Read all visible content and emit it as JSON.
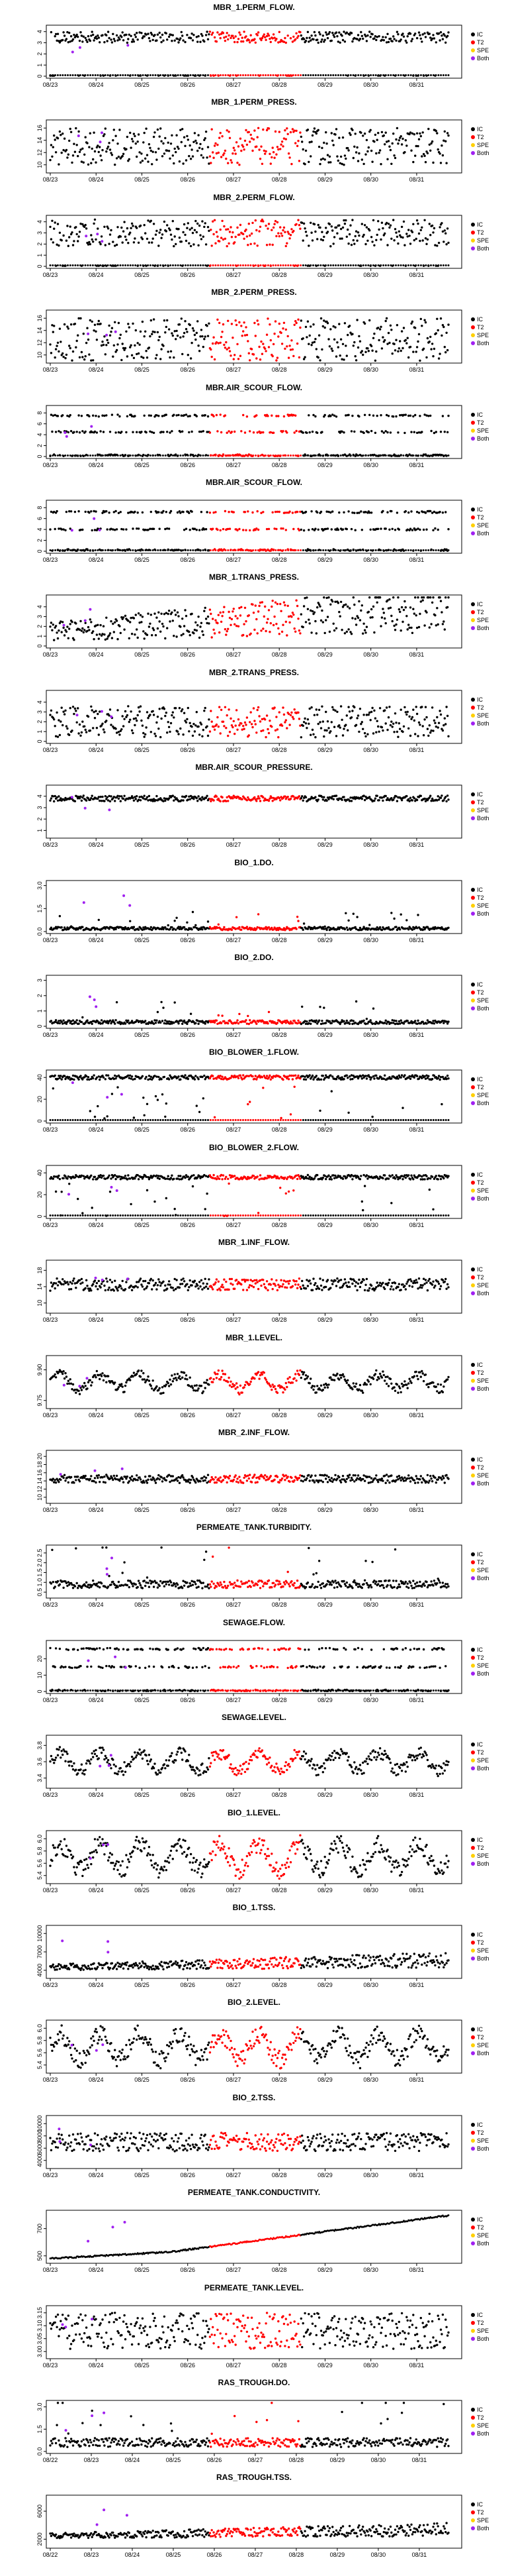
{
  "colors": {
    "IC": "#000000",
    "T2": "#ff0000",
    "SPE": "#ffd000",
    "Both": "#a020f0"
  },
  "legend": {
    "items": [
      "IC",
      "T2",
      "SPE",
      "Both"
    ]
  },
  "chart_data": [
    {
      "type": "scatter",
      "title": "MBR_1.PERM_FLOW.",
      "xticks": [
        "08/23",
        "08/24",
        "08/25",
        "08/26",
        "08/27",
        "08/28",
        "08/29",
        "08/30",
        "08/31"
      ],
      "yticks": [
        "0",
        "1",
        "2",
        "3",
        "4"
      ],
      "ylim": [
        0,
        4.4
      ],
      "pattern": "bimodal",
      "base": 3.5,
      "amp": 0.5,
      "low": 0.05
    },
    {
      "type": "scatter",
      "title": "MBR_1.PERM_PRESS.",
      "xticks": [
        "08/23",
        "08/24",
        "08/25",
        "08/26",
        "08/27",
        "08/28",
        "08/29",
        "08/30",
        "08/31"
      ],
      "yticks": [
        "10",
        "12",
        "14",
        "16"
      ],
      "ylim": [
        9,
        17
      ],
      "pattern": "band",
      "base": 13,
      "amp": 3
    },
    {
      "type": "scatter",
      "title": "MBR_2.PERM_FLOW.",
      "xticks": [
        "08/23",
        "08/24",
        "08/25",
        "08/26",
        "08/27",
        "08/28",
        "08/29",
        "08/30",
        "08/31"
      ],
      "yticks": [
        "0",
        "1",
        "2",
        "3",
        "4"
      ],
      "ylim": [
        0,
        4.4
      ],
      "pattern": "bimodal",
      "base": 3,
      "amp": 1.2,
      "low": 0.05
    },
    {
      "type": "scatter",
      "title": "MBR_2.PERM_PRESS.",
      "xticks": [
        "08/23",
        "08/24",
        "08/25",
        "08/26",
        "08/27",
        "08/28",
        "08/29",
        "08/30",
        "08/31"
      ],
      "yticks": [
        "10",
        "12",
        "14",
        "16"
      ],
      "ylim": [
        9,
        17
      ],
      "pattern": "band",
      "base": 12.5,
      "amp": 3.5
    },
    {
      "type": "scatter",
      "title": "MBR.AIR_SCOUR_FLOW.",
      "xticks": [
        "08/23",
        "08/24",
        "08/25",
        "08/26",
        "08/27",
        "08/28",
        "08/29",
        "08/30",
        "08/31"
      ],
      "yticks": [
        "0",
        "2",
        "4",
        "6",
        "8"
      ],
      "ylim": [
        0,
        9
      ],
      "pattern": "levels",
      "levels": [
        7.5,
        4.5,
        0.2
      ]
    },
    {
      "type": "scatter",
      "title": "MBR.AIR_SCOUR_FLOW.",
      "xticks": [
        "08/23",
        "08/24",
        "08/25",
        "08/26",
        "08/27",
        "08/28",
        "08/29",
        "08/30",
        "08/31"
      ],
      "yticks": [
        "0",
        "2",
        "4",
        "6",
        "8"
      ],
      "ylim": [
        0,
        9
      ],
      "pattern": "levels",
      "levels": [
        7.2,
        4.0,
        0.2
      ]
    },
    {
      "type": "scatter",
      "title": "MBR_1.TRANS_PRESS.",
      "xticks": [
        "08/23",
        "08/24",
        "08/25",
        "08/26",
        "08/27",
        "08/28",
        "08/29",
        "08/30",
        "08/31"
      ],
      "yticks": [
        "0",
        "1",
        "2",
        "3",
        "4"
      ],
      "ylim": [
        0,
        5
      ],
      "pattern": "rising",
      "base": 1.5,
      "amp": 1.6
    },
    {
      "type": "scatter",
      "title": "MBR_2.TRANS_PRESS.",
      "xticks": [
        "08/23",
        "08/24",
        "08/25",
        "08/26",
        "08/27",
        "08/28",
        "08/29",
        "08/30",
        "08/31"
      ],
      "yticks": [
        "0",
        "1",
        "2",
        "3",
        "4"
      ],
      "ylim": [
        0,
        5
      ],
      "pattern": "band",
      "base": 2,
      "amp": 1.6
    },
    {
      "type": "scatter",
      "title": "MBR.AIR_SCOUR_PRESSURE.",
      "xticks": [
        "08/23",
        "08/24",
        "08/25",
        "08/26",
        "08/27",
        "08/28",
        "08/29",
        "08/30",
        "08/31"
      ],
      "yticks": [
        "1",
        "2",
        "3",
        "4"
      ],
      "ylim": [
        0.5,
        4.8
      ],
      "pattern": "flat",
      "base": 3.8,
      "amp": 0.25
    },
    {
      "type": "scatter",
      "title": "BIO_1.DO.",
      "xticks": [
        "08/23",
        "08/24",
        "08/25",
        "08/26",
        "08/27",
        "08/28",
        "08/29",
        "08/30",
        "08/31"
      ],
      "yticks": [
        "0.0",
        "1.5",
        "3.0"
      ],
      "ylim": [
        0,
        3.2
      ],
      "pattern": "spiky",
      "base": 0.1,
      "amp": 0.4
    },
    {
      "type": "scatter",
      "title": "BIO_2.DO.",
      "xticks": [
        "08/23",
        "08/24",
        "08/25",
        "08/26",
        "08/27",
        "08/28",
        "08/29",
        "08/30",
        "08/31"
      ],
      "yticks": [
        "0",
        "1",
        "2",
        "3"
      ],
      "ylim": [
        0,
        3.2
      ],
      "pattern": "spiky",
      "base": 0.15,
      "amp": 0.5
    },
    {
      "type": "scatter",
      "title": "BIO_BLOWER_1.FLOW.",
      "xticks": [
        "08/23",
        "08/24",
        "08/25",
        "08/26",
        "08/27",
        "08/28",
        "08/29",
        "08/30",
        "08/31"
      ],
      "yticks": [
        "0",
        "20",
        "40"
      ],
      "ylim": [
        0,
        45
      ],
      "pattern": "high",
      "base": 40,
      "amp": 2
    },
    {
      "type": "scatter",
      "title": "BIO_BLOWER_2.FLOW.",
      "xticks": [
        "08/23",
        "08/24",
        "08/25",
        "08/26",
        "08/27",
        "08/28",
        "08/29",
        "08/30",
        "08/31"
      ],
      "yticks": [
        "0",
        "20",
        "40"
      ],
      "ylim": [
        0,
        45
      ],
      "pattern": "high",
      "base": 36,
      "amp": 2
    },
    {
      "type": "scatter",
      "title": "MBR_1.INF_FLOW.",
      "xticks": [
        "08/23",
        "08/24",
        "08/25",
        "08/26",
        "08/27",
        "08/28",
        "08/29",
        "08/30",
        "08/31"
      ],
      "yticks": [
        "10",
        "14",
        "18"
      ],
      "ylim": [
        8,
        20
      ],
      "pattern": "band",
      "base": 14.5,
      "amp": 1.5
    },
    {
      "type": "scatter",
      "title": "MBR_1.LEVEL.",
      "xticks": [
        "08/23",
        "08/24",
        "08/25",
        "08/26",
        "08/27",
        "08/28",
        "08/29",
        "08/30",
        "08/31"
      ],
      "yticks": [
        "9.75",
        "9.90"
      ],
      "ylim": [
        9.72,
        9.96
      ],
      "pattern": "wave",
      "base": 9.84,
      "amp": 0.05
    },
    {
      "type": "scatter",
      "title": "MBR_2.INF_FLOW.",
      "xticks": [
        "08/23",
        "08/24",
        "08/25",
        "08/26",
        "08/27",
        "08/28",
        "08/29",
        "08/30",
        "08/31"
      ],
      "yticks": [
        "10",
        "12",
        "14",
        "16",
        "18",
        "20"
      ],
      "ylim": [
        9,
        21
      ],
      "pattern": "band",
      "base": 14.5,
      "amp": 1
    },
    {
      "type": "scatter",
      "title": "PERMEATE_TANK.TURBIDITY.",
      "xticks": [
        "08/23",
        "08/24",
        "08/25",
        "08/26",
        "08/27",
        "08/28",
        "08/29",
        "08/30",
        "08/31"
      ],
      "yticks": [
        "0.5",
        "1.0",
        "1.5",
        "2.0",
        "2.5"
      ],
      "ylim": [
        0.3,
        2.8
      ],
      "pattern": "spiky",
      "base": 0.7,
      "amp": 0.8
    },
    {
      "type": "scatter",
      "title": "SEWAGE.FLOW.",
      "xticks": [
        "08/23",
        "08/24",
        "08/25",
        "08/26",
        "08/27",
        "08/28",
        "08/29",
        "08/30",
        "08/31"
      ],
      "yticks": [
        "0",
        "10",
        "20"
      ],
      "ylim": [
        0,
        30
      ],
      "pattern": "levels",
      "levels": [
        26,
        15,
        0.5
      ]
    },
    {
      "type": "scatter",
      "title": "SEWAGE.LEVEL.",
      "xticks": [
        "08/23",
        "08/24",
        "08/25",
        "08/26",
        "08/27",
        "08/28",
        "08/29",
        "08/30",
        "08/31"
      ],
      "yticks": [
        "3.4",
        "3.6",
        "3.8"
      ],
      "ylim": [
        3.3,
        3.9
      ],
      "pattern": "wave",
      "base": 3.6,
      "amp": 0.15
    },
    {
      "type": "scatter",
      "title": "BIO_1.LEVEL.",
      "xticks": [
        "08/23",
        "08/24",
        "08/25",
        "08/26",
        "08/27",
        "08/28",
        "08/29",
        "08/30",
        "08/31"
      ],
      "yticks": [
        "5.4",
        "5.6",
        "5.8",
        "6.0"
      ],
      "ylim": [
        5.3,
        6.1
      ],
      "pattern": "wave",
      "base": 5.7,
      "amp": 0.3
    },
    {
      "type": "scatter",
      "title": "BIO_1.TSS.",
      "xticks": [
        "08/23",
        "08/24",
        "08/25",
        "08/26",
        "08/27",
        "08/28",
        "08/29",
        "08/30",
        "08/31"
      ],
      "yticks": [
        "4000",
        "7000",
        "10000"
      ],
      "ylim": [
        3000,
        11000
      ],
      "pattern": "rising",
      "base": 4500,
      "amp": 800
    },
    {
      "type": "scatter",
      "title": "BIO_2.LEVEL.",
      "xticks": [
        "08/23",
        "08/24",
        "08/25",
        "08/26",
        "08/27",
        "08/28",
        "08/29",
        "08/30",
        "08/31"
      ],
      "yticks": [
        "5.4",
        "5.6",
        "5.8",
        "6.0"
      ],
      "ylim": [
        5.3,
        6.1
      ],
      "pattern": "wave",
      "base": 5.7,
      "amp": 0.3
    },
    {
      "type": "scatter",
      "title": "BIO_2.TSS.",
      "xticks": [
        "08/23",
        "08/24",
        "08/25",
        "08/26",
        "08/27",
        "08/28",
        "08/29",
        "08/30",
        "08/31"
      ],
      "yticks": [
        "4000",
        "6000",
        "8000",
        "10000"
      ],
      "ylim": [
        3000,
        11000
      ],
      "pattern": "band",
      "base": 7000,
      "amp": 1500
    },
    {
      "type": "line",
      "title": "PERMEATE_TANK.CONDUCTIVITY.",
      "xticks": [
        "08/23",
        "08/24",
        "08/25",
        "08/26",
        "08/27",
        "08/28",
        "08/29",
        "08/30",
        "08/31"
      ],
      "yticks": [
        "500",
        "700"
      ],
      "ylim": [
        460,
        820
      ],
      "pattern": "trend",
      "start": 480,
      "end": 800
    },
    {
      "type": "scatter",
      "title": "PERMEATE_TANK.LEVEL.",
      "xticks": [
        "08/23",
        "08/24",
        "08/25",
        "08/26",
        "08/27",
        "08/28",
        "08/29",
        "08/30",
        "08/31"
      ],
      "yticks": [
        "3.00",
        "3.05",
        "3.10",
        "3.15"
      ],
      "ylim": [
        2.98,
        3.17
      ],
      "pattern": "band",
      "base": 3.08,
      "amp": 0.07
    },
    {
      "type": "scatter",
      "title": "RAS_TROUGH.DO.",
      "xticks": [
        "08/22",
        "08/23",
        "08/24",
        "08/25",
        "08/26",
        "08/27",
        "08/28",
        "08/29",
        "08/30",
        "08/31"
      ],
      "yticks": [
        "0.0",
        "1.5",
        "3.0"
      ],
      "ylim": [
        0,
        3.3
      ],
      "pattern": "spiky",
      "base": 0.3,
      "amp": 1.2
    },
    {
      "type": "scatter",
      "title": "RAS_TROUGH.TSS.",
      "xticks": [
        "08/22",
        "08/23",
        "08/24",
        "08/25",
        "08/26",
        "08/27",
        "08/28",
        "08/29",
        "08/30",
        "08/31"
      ],
      "yticks": [
        "2000",
        "6000"
      ],
      "ylim": [
        1000,
        8000
      ],
      "pattern": "rising",
      "base": 2500,
      "amp": 600
    }
  ]
}
